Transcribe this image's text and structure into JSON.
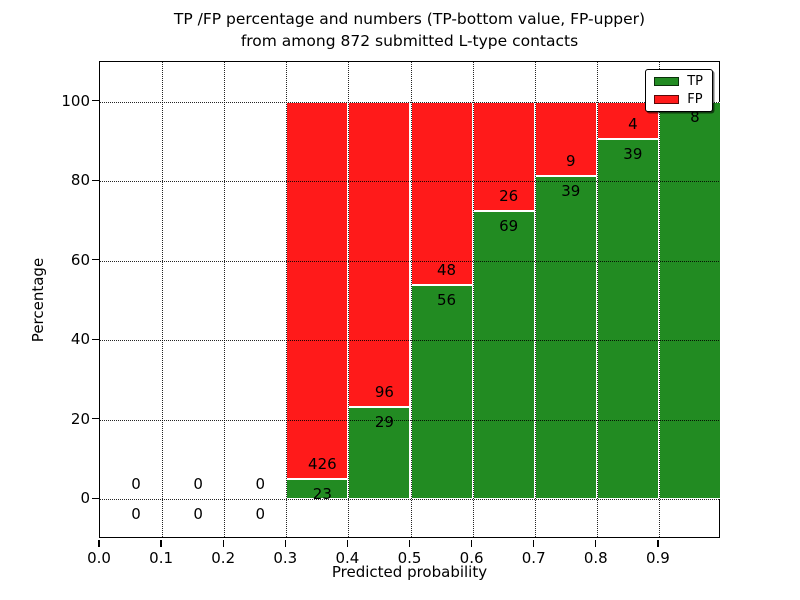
{
  "title": {
    "line1": "TP /FP percentage and numbers (TP-bottom value, FP-upper)",
    "line2": "from among 872 submitted L-type contacts"
  },
  "axes": {
    "xlabel": "Predicted probability",
    "ylabel": "Percentage",
    "x_tick_labels": [
      "0.0",
      "0.1",
      "0.2",
      "0.3",
      "0.4",
      "0.5",
      "0.6",
      "0.7",
      "0.8",
      "0.9"
    ],
    "y_tick_labels": [
      "0",
      "20",
      "40",
      "60",
      "80",
      "100"
    ]
  },
  "legend": {
    "position": "upper right",
    "entries": [
      {
        "label": "TP",
        "color": "#228b22"
      },
      {
        "label": "FP",
        "color": "#ff1a1a"
      }
    ]
  },
  "colors": {
    "tp": "#228b22",
    "fp": "#ff1a1a",
    "grid": "#000000",
    "bar_edge": "#ffffff",
    "background": "#ffffff"
  },
  "chart_data": {
    "type": "bar",
    "stacked": true,
    "normalized": "each bin is TP+FP = 100 percent; TP on bottom, FP on top",
    "title": "TP /FP percentage and numbers (TP-bottom value, FP-upper)\nfrom among 872 submitted L-type contacts",
    "xlabel": "Predicted probability",
    "ylabel": "Percentage",
    "total_submitted": 872,
    "bin_edges": [
      0.0,
      0.1,
      0.2,
      0.3,
      0.4,
      0.5,
      0.6,
      0.7,
      0.8,
      0.9,
      1.0
    ],
    "series": [
      {
        "name": "TP",
        "color": "#228b22",
        "counts": [
          0,
          0,
          0,
          23,
          29,
          56,
          69,
          39,
          39,
          8
        ]
      },
      {
        "name": "FP",
        "color": "#ff1a1a",
        "counts": [
          0,
          0,
          0,
          426,
          96,
          48,
          26,
          9,
          4,
          0
        ]
      }
    ],
    "tp_percent_by_bin": [
      0,
      0,
      0,
      5.1,
      23.2,
      53.8,
      72.6,
      81.3,
      90.7,
      100
    ],
    "xlim": [
      0.0,
      1.0
    ],
    "ylim": [
      -10,
      110
    ],
    "y_grid_ticks": [
      0,
      20,
      40,
      60,
      80,
      100
    ],
    "x_grid_ticks": [
      0.1,
      0.2,
      0.3,
      0.4,
      0.5,
      0.6,
      0.7,
      0.8,
      0.9
    ],
    "grid": "dotted black, drawn over bars",
    "legend_position": "upper right"
  }
}
